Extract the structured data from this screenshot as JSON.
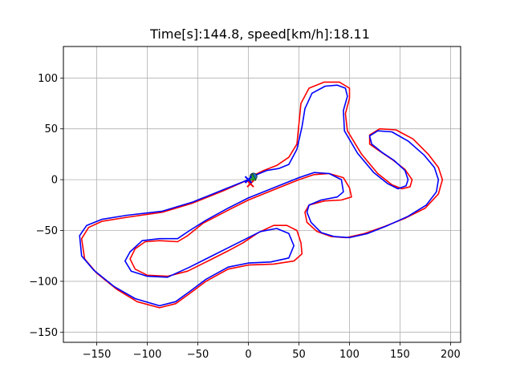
{
  "chart_data": {
    "type": "line",
    "title": "Time[s]:144.8, speed[km/h]:18.11",
    "xlabel": "",
    "ylabel": "",
    "xlim": [
      -183,
      210
    ],
    "ylim": [
      -160,
      131
    ],
    "xticks": [
      -150,
      -100,
      -50,
      0,
      50,
      100,
      150,
      200
    ],
    "yticks": [
      -150,
      -100,
      -50,
      0,
      50,
      100
    ],
    "xtick_labels": [
      "−150",
      "−100",
      "−50",
      "0",
      "50",
      "100",
      "150",
      "200"
    ],
    "ytick_labels": [
      "−150",
      "−100",
      "−50",
      "0",
      "50",
      "100"
    ],
    "grid": true,
    "series": [
      {
        "color": "#ff0000",
        "points": [
          [
            0,
            0
          ],
          [
            -25,
            -11
          ],
          [
            -55,
            -23
          ],
          [
            -85,
            -32
          ],
          [
            -120,
            -37
          ],
          [
            -145,
            -41
          ],
          [
            -158,
            -47
          ],
          [
            -165,
            -58
          ],
          [
            -162,
            -78
          ],
          [
            -150,
            -92
          ],
          [
            -130,
            -108
          ],
          [
            -110,
            -120
          ],
          [
            -88,
            -126
          ],
          [
            -72,
            -122
          ],
          [
            -58,
            -112
          ],
          [
            -42,
            -100
          ],
          [
            -20,
            -88
          ],
          [
            0,
            -84
          ],
          [
            25,
            -83
          ],
          [
            45,
            -80
          ],
          [
            53,
            -73
          ],
          [
            52,
            -62
          ],
          [
            48,
            -50
          ],
          [
            38,
            -45
          ],
          [
            25,
            -45
          ],
          [
            10,
            -52
          ],
          [
            -5,
            -62
          ],
          [
            -20,
            -70
          ],
          [
            -40,
            -80
          ],
          [
            -60,
            -90
          ],
          [
            -80,
            -95
          ],
          [
            -100,
            -94
          ],
          [
            -112,
            -88
          ],
          [
            -117,
            -78
          ],
          [
            -112,
            -68
          ],
          [
            -102,
            -61
          ],
          [
            -88,
            -60
          ],
          [
            -70,
            -61
          ],
          [
            -60,
            -55
          ],
          [
            -45,
            -43
          ],
          [
            -20,
            -30
          ],
          [
            0,
            -20
          ],
          [
            25,
            -10
          ],
          [
            50,
            0
          ],
          [
            65,
            5
          ],
          [
            80,
            6
          ],
          [
            94,
            2
          ],
          [
            100,
            -8
          ],
          [
            102,
            -17
          ],
          [
            92,
            -20
          ],
          [
            75,
            -21
          ],
          [
            60,
            -25
          ],
          [
            56,
            -32
          ],
          [
            58,
            -42
          ],
          [
            68,
            -51
          ],
          [
            82,
            -56
          ],
          [
            97,
            -57
          ],
          [
            115,
            -53
          ],
          [
            135,
            -46
          ],
          [
            155,
            -38
          ],
          [
            175,
            -28
          ],
          [
            188,
            -14
          ],
          [
            192,
            0
          ],
          [
            188,
            12
          ],
          [
            178,
            25
          ],
          [
            163,
            40
          ],
          [
            146,
            49
          ],
          [
            130,
            50
          ],
          [
            120,
            44
          ],
          [
            120,
            35
          ],
          [
            130,
            28
          ],
          [
            142,
            20
          ],
          [
            155,
            10
          ],
          [
            162,
            0
          ],
          [
            160,
            -7
          ],
          [
            152,
            -9
          ],
          [
            142,
            -5
          ],
          [
            128,
            6
          ],
          [
            112,
            25
          ],
          [
            98,
            48
          ],
          [
            96,
            65
          ],
          [
            100,
            80
          ],
          [
            100,
            90
          ],
          [
            90,
            96
          ],
          [
            75,
            96
          ],
          [
            60,
            90
          ],
          [
            52,
            75
          ],
          [
            50,
            55
          ],
          [
            48,
            35
          ],
          [
            40,
            22
          ],
          [
            28,
            14
          ],
          [
            15,
            9
          ],
          [
            5,
            4
          ],
          [
            0,
            0
          ]
        ]
      },
      {
        "color": "#0000ff",
        "points": [
          [
            0,
            0
          ],
          [
            -25,
            -10
          ],
          [
            -55,
            -22
          ],
          [
            -85,
            -31
          ],
          [
            -120,
            -35
          ],
          [
            -145,
            -39
          ],
          [
            -160,
            -45
          ],
          [
            -167,
            -55
          ],
          [
            -165,
            -75
          ],
          [
            -153,
            -89
          ],
          [
            -133,
            -105
          ],
          [
            -112,
            -117
          ],
          [
            -88,
            -124
          ],
          [
            -72,
            -120
          ],
          [
            -58,
            -110
          ],
          [
            -42,
            -98
          ],
          [
            -20,
            -86
          ],
          [
            0,
            -82
          ],
          [
            22,
            -81
          ],
          [
            40,
            -77
          ],
          [
            45,
            -65
          ],
          [
            40,
            -53
          ],
          [
            28,
            -48
          ],
          [
            12,
            -51
          ],
          [
            -2,
            -58
          ],
          [
            -18,
            -66
          ],
          [
            -38,
            -76
          ],
          [
            -58,
            -86
          ],
          [
            -80,
            -96
          ],
          [
            -100,
            -95
          ],
          [
            -116,
            -90
          ],
          [
            -122,
            -80
          ],
          [
            -117,
            -71
          ],
          [
            -105,
            -60
          ],
          [
            -88,
            -58
          ],
          [
            -70,
            -58
          ],
          [
            -58,
            -50
          ],
          [
            -42,
            -40
          ],
          [
            -20,
            -28
          ],
          [
            0,
            -18
          ],
          [
            25,
            -8
          ],
          [
            50,
            2
          ],
          [
            65,
            7
          ],
          [
            80,
            6
          ],
          [
            92,
            0
          ],
          [
            94,
            -12
          ],
          [
            88,
            -17
          ],
          [
            72,
            -20
          ],
          [
            60,
            -25
          ],
          [
            58,
            -32
          ],
          [
            62,
            -42
          ],
          [
            72,
            -52
          ],
          [
            85,
            -56
          ],
          [
            100,
            -57
          ],
          [
            118,
            -53
          ],
          [
            138,
            -45
          ],
          [
            158,
            -36
          ],
          [
            176,
            -25
          ],
          [
            186,
            -12
          ],
          [
            188,
            0
          ],
          [
            184,
            12
          ],
          [
            174,
            24
          ],
          [
            158,
            38
          ],
          [
            142,
            47
          ],
          [
            128,
            48
          ],
          [
            120,
            43
          ],
          [
            122,
            35
          ],
          [
            132,
            27
          ],
          [
            144,
            19
          ],
          [
            155,
            9
          ],
          [
            158,
            0
          ],
          [
            156,
            -6
          ],
          [
            148,
            -9
          ],
          [
            138,
            -4
          ],
          [
            124,
            7
          ],
          [
            108,
            26
          ],
          [
            95,
            48
          ],
          [
            94,
            68
          ],
          [
            98,
            82
          ],
          [
            96,
            90
          ],
          [
            88,
            93
          ],
          [
            76,
            92
          ],
          [
            63,
            85
          ],
          [
            56,
            70
          ],
          [
            53,
            52
          ],
          [
            48,
            30
          ],
          [
            40,
            15
          ],
          [
            30,
            11
          ],
          [
            18,
            9
          ],
          [
            6,
            4
          ],
          [
            0,
            0
          ]
        ]
      }
    ],
    "markers": [
      {
        "x": 5,
        "y": 3,
        "color": "#1f77b4",
        "shape": "circle"
      },
      {
        "x": 4,
        "y": 2,
        "color": "#2ca02c",
        "shape": "triangle"
      },
      {
        "x": 2,
        "y": -4,
        "color": "#ff0000",
        "shape": "x"
      },
      {
        "x": 0,
        "y": 0,
        "color": "#0000ff",
        "shape": "x"
      }
    ]
  }
}
